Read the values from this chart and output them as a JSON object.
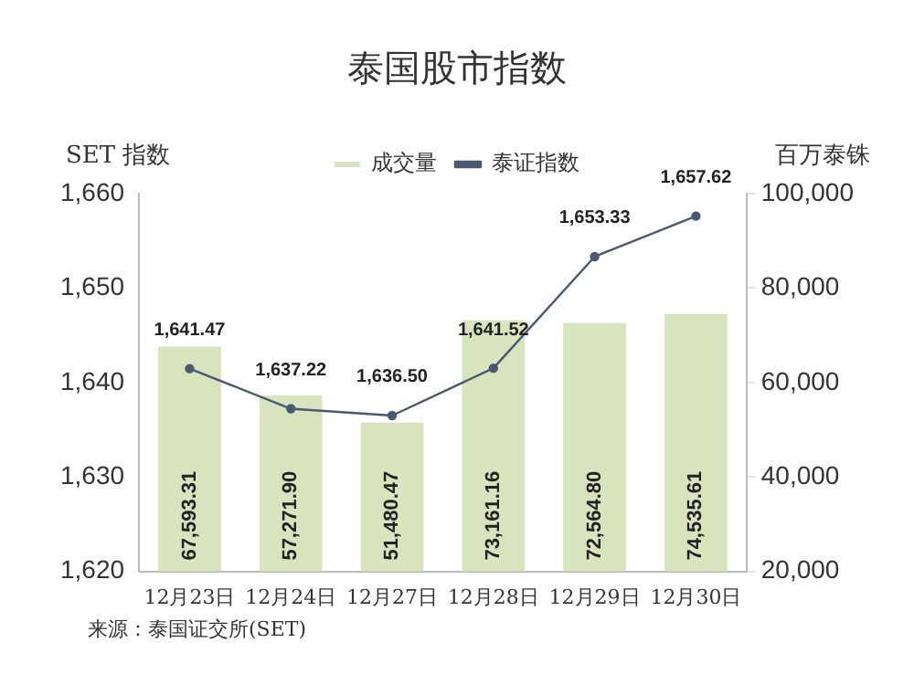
{
  "chart_data": {
    "type": "bar",
    "title": "泰国股市指数",
    "ylabel": "SET 指数",
    "y2label": "百万泰铢",
    "categories": [
      "12月23日",
      "12月24日",
      "12月27日",
      "12月28日",
      "12月29日",
      "12月30日"
    ],
    "series": [
      {
        "name": "成交量",
        "axis": "y2",
        "color": "#d7e4bd",
        "values": [
          67593.31,
          57271.9,
          51480.47,
          73161.16,
          72564.8,
          74535.61
        ],
        "value_labels": [
          "67,593.31",
          "57,271.90",
          "51,480.47",
          "73,161.16",
          "72,564.80",
          "74,535.61"
        ]
      },
      {
        "name": "泰证指数",
        "type": "line",
        "axis": "y",
        "color": "#4a5870",
        "values": [
          1641.47,
          1637.22,
          1636.5,
          1641.52,
          1653.33,
          1657.62
        ],
        "value_labels": [
          "1,641.47",
          "1,637.22",
          "1,636.50",
          "1,641.52",
          "1,653.33",
          "1,657.62"
        ]
      }
    ],
    "ylim": [
      1620,
      1660
    ],
    "yticks": [
      {
        "value": 1620,
        "label": "1,620"
      },
      {
        "value": 1630,
        "label": "1,630"
      },
      {
        "value": 1640,
        "label": "1,640"
      },
      {
        "value": 1650,
        "label": "1,650"
      },
      {
        "value": 1660,
        "label": "1,660"
      }
    ],
    "y2lim": [
      20000,
      100000
    ],
    "y2ticks": [
      {
        "value": 20000,
        "label": "20,000"
      },
      {
        "value": 40000,
        "label": "40,000"
      },
      {
        "value": 60000,
        "label": "60,000"
      },
      {
        "value": 80000,
        "label": "80,000"
      },
      {
        "value": 100000,
        "label": "100,000"
      }
    ],
    "grid": false,
    "legend": "top",
    "marker": "circle",
    "line_style": "solid",
    "annotations": [
      "来源：泰国证交所(SET)"
    ]
  }
}
